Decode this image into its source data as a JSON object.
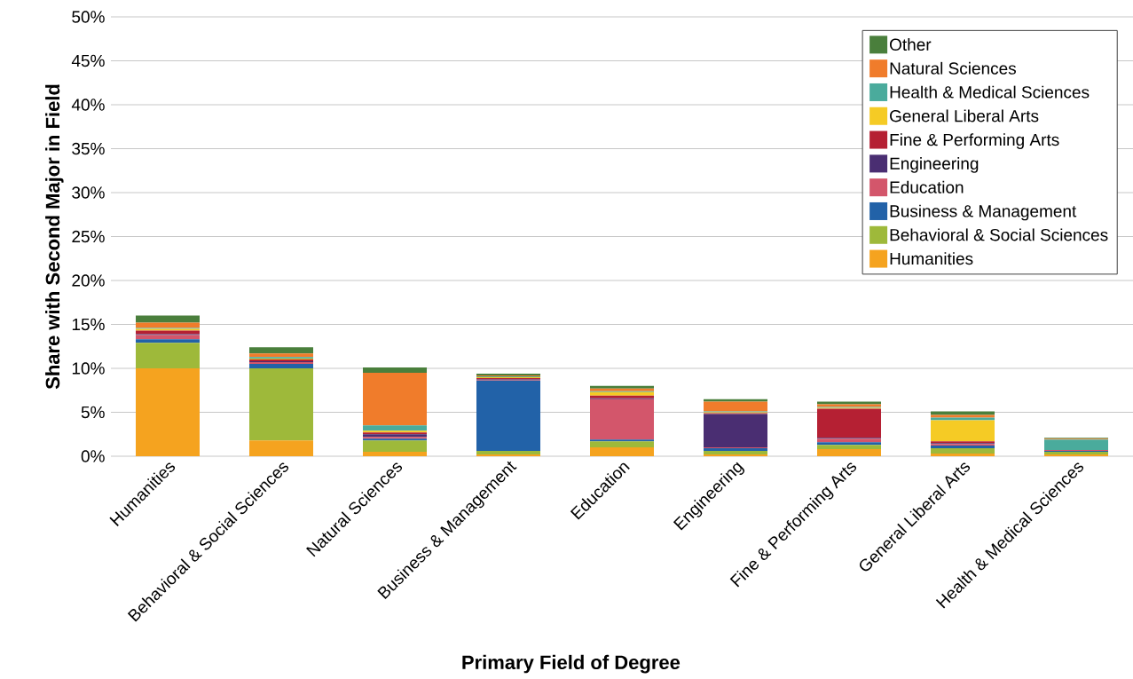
{
  "chart_data": {
    "type": "bar",
    "stacked": true,
    "xlabel": "Primary Field of Degree",
    "ylabel": "Share with Second Major in Field",
    "categories": [
      "Humanities",
      "Behavioral & Social Sciences",
      "Natural Sciences",
      "Business & Management",
      "Education",
      "Engineering",
      "Fine & Performing Arts",
      "General Liberal Arts",
      "Health & Medical Sciences"
    ],
    "series": [
      {
        "name": "Humanities",
        "color": "#f5a31f",
        "values": [
          10.0,
          1.8,
          0.5,
          0.2,
          1.0,
          0.2,
          0.8,
          0.3,
          0.2
        ]
      },
      {
        "name": "Behavioral & Social Sciences",
        "color": "#9eb93a",
        "values": [
          2.9,
          8.2,
          1.3,
          0.4,
          0.7,
          0.4,
          0.5,
          0.6,
          0.3
        ]
      },
      {
        "name": "Business & Management",
        "color": "#2262a8",
        "values": [
          0.4,
          0.5,
          0.2,
          8.0,
          0.2,
          0.3,
          0.3,
          0.3,
          0.1
        ]
      },
      {
        "name": "Education",
        "color": "#d3566b",
        "values": [
          0.5,
          0.2,
          0.2,
          0.1,
          4.6,
          0.1,
          0.4,
          0.2,
          0.1
        ]
      },
      {
        "name": "Engineering",
        "color": "#4a2e72",
        "values": [
          0.1,
          0.1,
          0.3,
          0.1,
          0.1,
          3.8,
          0.1,
          0.1,
          0.0
        ]
      },
      {
        "name": "Fine & Performing Arts",
        "color": "#b52033",
        "values": [
          0.4,
          0.2,
          0.2,
          0.1,
          0.3,
          0.1,
          3.3,
          0.2,
          0.0
        ]
      },
      {
        "name": "General Liberal Arts",
        "color": "#f5cb25",
        "values": [
          0.2,
          0.1,
          0.2,
          0.1,
          0.4,
          0.1,
          0.1,
          2.4,
          0.0
        ]
      },
      {
        "name": "Health & Medical Sciences",
        "color": "#4aab9c",
        "values": [
          0.1,
          0.2,
          0.6,
          0.1,
          0.1,
          0.1,
          0.1,
          0.3,
          1.2
        ]
      },
      {
        "name": "Natural Sciences",
        "color": "#f07c2b",
        "values": [
          0.6,
          0.4,
          6.0,
          0.1,
          0.3,
          1.1,
          0.3,
          0.3,
          0.1
        ]
      },
      {
        "name": "Other",
        "color": "#4a7f3c",
        "values": [
          0.8,
          0.7,
          0.6,
          0.2,
          0.3,
          0.3,
          0.3,
          0.4,
          0.1
        ]
      }
    ],
    "ylim": [
      0,
      50
    ],
    "yticks": [
      {
        "value": 0,
        "label": "0%"
      },
      {
        "value": 5,
        "label": "5%"
      },
      {
        "value": 10,
        "label": "10%"
      },
      {
        "value": 15,
        "label": "15%"
      },
      {
        "value": 20,
        "label": "20%"
      },
      {
        "value": 25,
        "label": "25%"
      },
      {
        "value": 30,
        "label": "30%"
      },
      {
        "value": 35,
        "label": "35%"
      },
      {
        "value": 40,
        "label": "40%"
      },
      {
        "value": 45,
        "label": "45%"
      },
      {
        "value": 50,
        "label": "50%"
      }
    ],
    "grid": "y",
    "legend": "top right"
  }
}
